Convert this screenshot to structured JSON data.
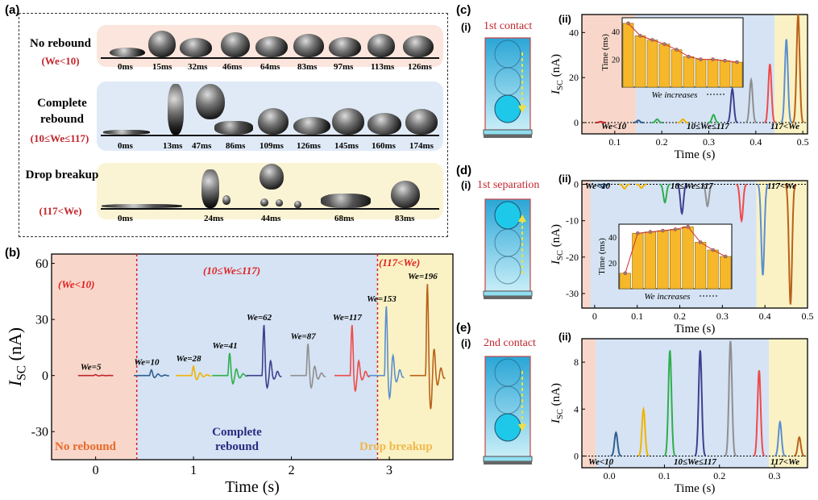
{
  "panel_a": {
    "label": "(a)",
    "rows": [
      {
        "title": "No rebound",
        "cond": "(We<10)",
        "times": [
          "0ms",
          "15ms",
          "32ms",
          "46ms",
          "64ms",
          "83ms",
          "97ms",
          "113ms",
          "126ms"
        ]
      },
      {
        "title": "Complete rebound",
        "cond": "(10≤We≤117)",
        "times": [
          "0ms",
          "13ms",
          "47ms",
          "86ms",
          "109ms",
          "126ms",
          "145ms",
          "160ms",
          "174ms"
        ]
      },
      {
        "title": "Drop breakup",
        "cond": "(117<We)",
        "times": [
          "0ms",
          "24ms",
          "44ms",
          "68ms",
          "83ms"
        ]
      }
    ],
    "colors": {
      "row1": "#fbe7e0",
      "row2": "#e3ecf8",
      "row3": "#fcf6d8"
    }
  },
  "panel_b": {
    "label": "(b)",
    "regime_labels": [
      "(We<10)",
      "(10≤We≤117)",
      "(117<We)"
    ],
    "region_labels": [
      "No rebound",
      "Complete rebound",
      "Drop breakup"
    ],
    "region_colors": [
      "#e8692a",
      "#2a2a80",
      "#f0b84a"
    ]
  },
  "panel_c": {
    "label": "(c)",
    "sub_i": "(i)",
    "sub_ii": "(ii)",
    "title": "1st contact",
    "region_labels": [
      "We<10",
      "10≤We≤117",
      "117<We"
    ],
    "inset": {
      "ylabel": "Time (ms)",
      "xlabel": "We increases",
      "yticks": [
        "20",
        "40"
      ]
    }
  },
  "panel_d": {
    "label": "(d)",
    "sub_i": "(i)",
    "sub_ii": "(ii)",
    "title": "1st separation",
    "region_labels": [
      "We<10",
      "10≤We≤117",
      "117<We"
    ],
    "inset": {
      "ylabel": "Time (ms)",
      "xlabel": "We increases",
      "yticks": [
        "20",
        "40"
      ]
    }
  },
  "panel_e": {
    "label": "(e)",
    "sub_i": "(i)",
    "sub_ii": "(ii)",
    "title": "2nd contact",
    "region_labels": [
      "We<10",
      "10≤We≤117",
      "117<We"
    ]
  },
  "chart_data": [
    {
      "id": "b",
      "type": "line",
      "xlabel": "Time (s)",
      "ylabel": "I_SC (nA)",
      "xlim": [
        -0.45,
        3.65
      ],
      "ylim": [
        -45,
        65
      ],
      "xticks": [
        0,
        1,
        2,
        3
      ],
      "yticks": [
        -30,
        0,
        30,
        60
      ],
      "regions": [
        [
          -0.45,
          0.42
        ],
        [
          0.42,
          2.88
        ],
        [
          2.88,
          3.65
        ]
      ],
      "series": [
        {
          "name": "We=5",
          "t0": 0.0,
          "amp": 0.5,
          "neg": 0.3,
          "color": "#c0262d"
        },
        {
          "name": "We=10",
          "t0": 0.57,
          "amp": 3,
          "neg": 2,
          "color": "#2f5f8f"
        },
        {
          "name": "We=28",
          "t0": 1.0,
          "amp": 5,
          "neg": 4,
          "color": "#f0b400"
        },
        {
          "name": "We=41",
          "t0": 1.37,
          "amp": 12,
          "neg": 8,
          "color": "#2fae4e"
        },
        {
          "name": "We=62",
          "t0": 1.72,
          "amp": 27,
          "neg": 12,
          "color": "#3f3f8f"
        },
        {
          "name": "We=87",
          "t0": 2.17,
          "amp": 17,
          "neg": 12,
          "color": "#8f8f8f"
        },
        {
          "name": "We=117",
          "t0": 2.62,
          "amp": 27,
          "neg": 15,
          "color": "#f04a4a"
        },
        {
          "name": "We=153",
          "t0": 2.97,
          "amp": 37,
          "neg": 22,
          "color": "#5b8fd0"
        },
        {
          "name": "We=196",
          "t0": 3.39,
          "amp": 49,
          "neg": 33,
          "color": "#b8621a"
        }
      ]
    },
    {
      "id": "c",
      "type": "line",
      "xlabel": "Time (s)",
      "ylabel": "I_SC (nA)",
      "xlim": [
        0.03,
        0.51
      ],
      "ylim": [
        -5,
        48
      ],
      "xticks": [
        0.1,
        0.2,
        0.3,
        0.4,
        0.5
      ],
      "yticks": [
        0,
        20,
        40
      ],
      "regions": [
        [
          0.03,
          0.145
        ],
        [
          0.145,
          0.44
        ],
        [
          0.44,
          0.51
        ]
      ],
      "peaks": [
        {
          "t": 0.07,
          "amp": 0.4,
          "color": "#c0262d"
        },
        {
          "t": 0.15,
          "amp": 1.0,
          "color": "#2f5f8f"
        },
        {
          "t": 0.19,
          "amp": 1.5,
          "color": "#2fae4e"
        },
        {
          "t": 0.245,
          "amp": 1.5,
          "color": "#f0b400"
        },
        {
          "t": 0.31,
          "amp": 3.5,
          "color": "#2fae4e"
        },
        {
          "t": 0.35,
          "amp": 15,
          "color": "#3f3f8f"
        },
        {
          "t": 0.39,
          "amp": 19,
          "color": "#8f8f8f"
        },
        {
          "t": 0.43,
          "amp": 26,
          "color": "#f04a4a"
        },
        {
          "t": 0.465,
          "amp": 37,
          "color": "#5b8fd0"
        },
        {
          "t": 0.49,
          "amp": 48,
          "color": "#b8621a"
        }
      ],
      "inset_bars": [
        46,
        37,
        34,
        31,
        27,
        22,
        20,
        20,
        19,
        18
      ]
    },
    {
      "id": "d",
      "type": "line",
      "xlabel": "Time (s)",
      "ylabel": "I_SC (nA)",
      "xlim": [
        -0.03,
        0.5
      ],
      "ylim": [
        -34,
        1
      ],
      "xticks": [
        0,
        0.1,
        0.2,
        0.3,
        0.4,
        0.5
      ],
      "yticks": [
        0,
        -10,
        -20,
        -30
      ],
      "regions": [
        [
          -0.03,
          -0.01
        ],
        [
          -0.01,
          0.38
        ],
        [
          0.38,
          0.5
        ]
      ],
      "peaks": [
        {
          "t": 0.02,
          "amp": -1,
          "color": "#2f5f8f"
        },
        {
          "t": 0.07,
          "amp": -1.2,
          "color": "#f0b400"
        },
        {
          "t": 0.11,
          "amp": -1,
          "color": "#f0b400"
        },
        {
          "t": 0.165,
          "amp": -5,
          "color": "#2fae4e"
        },
        {
          "t": 0.205,
          "amp": -8,
          "color": "#3f3f8f"
        },
        {
          "t": 0.265,
          "amp": -6,
          "color": "#8f8f8f"
        },
        {
          "t": 0.345,
          "amp": -10,
          "color": "#f04a4a"
        },
        {
          "t": 0.395,
          "amp": -25,
          "color": "#5b8fd0"
        },
        {
          "t": 0.46,
          "amp": -33,
          "color": "#b8621a"
        }
      ],
      "inset_bars": [
        12,
        43,
        44,
        45,
        46,
        48,
        36,
        30,
        25
      ]
    },
    {
      "id": "e",
      "type": "line",
      "xlabel": "Time (s)",
      "ylabel": "I_SC (nA)",
      "xlim": [
        -0.05,
        0.36
      ],
      "ylim": [
        -1,
        10
      ],
      "xticks": [
        0.0,
        0.1,
        0.2,
        0.3
      ],
      "yticks": [
        0,
        4,
        8
      ],
      "regions": [
        [
          -0.05,
          -0.025
        ],
        [
          -0.025,
          0.29
        ],
        [
          0.29,
          0.36
        ]
      ],
      "peaks": [
        {
          "t": 0.012,
          "amp": 2.0,
          "color": "#2f5f8f"
        },
        {
          "t": 0.062,
          "amp": 4.0,
          "color": "#f0b400"
        },
        {
          "t": 0.11,
          "amp": 9.0,
          "color": "#2fae4e"
        },
        {
          "t": 0.165,
          "amp": 9.0,
          "color": "#3f3f8f"
        },
        {
          "t": 0.22,
          "amp": 9.8,
          "color": "#8f8f8f"
        },
        {
          "t": 0.272,
          "amp": 7.3,
          "color": "#f04a4a"
        },
        {
          "t": 0.31,
          "amp": 2.9,
          "color": "#5b8fd0"
        },
        {
          "t": 0.345,
          "amp": 1.6,
          "color": "#b8621a"
        }
      ]
    }
  ]
}
